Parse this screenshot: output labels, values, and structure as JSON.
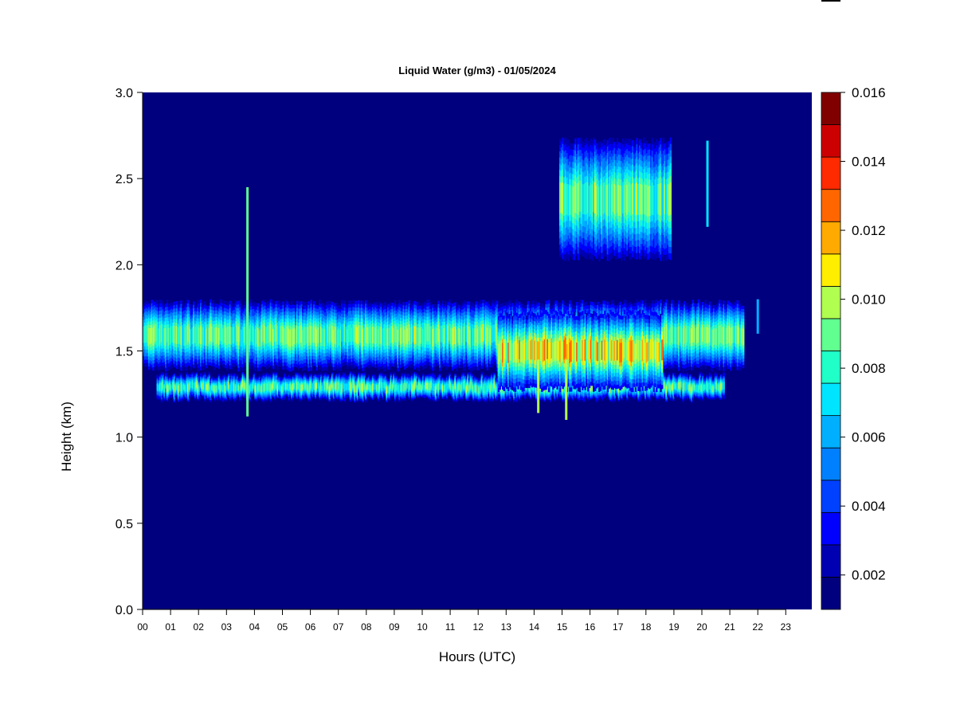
{
  "chart_data": {
    "type": "heatmap",
    "title": "Liquid Water (g/m3) - 01/05/2024",
    "xlabel": "Hours (UTC)",
    "ylabel": "Height (km)",
    "xlim": [
      0,
      24
    ],
    "ylim": [
      0,
      3.0
    ],
    "x_ticks": [
      {
        "value": 0,
        "label": "00"
      },
      {
        "value": 1,
        "label": "01"
      },
      {
        "value": 2,
        "label": "02"
      },
      {
        "value": 3,
        "label": "03"
      },
      {
        "value": 4,
        "label": "04"
      },
      {
        "value": 5,
        "label": "05"
      },
      {
        "value": 6,
        "label": "06"
      },
      {
        "value": 7,
        "label": "07"
      },
      {
        "value": 8,
        "label": "08"
      },
      {
        "value": 9,
        "label": "09"
      },
      {
        "value": 10,
        "label": "10"
      },
      {
        "value": 11,
        "label": "11"
      },
      {
        "value": 12,
        "label": "12"
      },
      {
        "value": 13,
        "label": "13"
      },
      {
        "value": 14,
        "label": "14"
      },
      {
        "value": 15,
        "label": "15"
      },
      {
        "value": 16,
        "label": "16"
      },
      {
        "value": 17,
        "label": "17"
      },
      {
        "value": 18,
        "label": "18"
      },
      {
        "value": 19,
        "label": "19"
      },
      {
        "value": 20,
        "label": "20"
      },
      {
        "value": 21,
        "label": "21"
      },
      {
        "value": 22,
        "label": "22"
      },
      {
        "value": 23,
        "label": "23"
      }
    ],
    "y_ticks": [
      {
        "value": 0.0,
        "label": "0.0"
      },
      {
        "value": 0.5,
        "label": "0.5"
      },
      {
        "value": 1.0,
        "label": "1.0"
      },
      {
        "value": 1.5,
        "label": "1.5"
      },
      {
        "value": 2.0,
        "label": "2.0"
      },
      {
        "value": 2.5,
        "label": "2.5"
      },
      {
        "value": 3.0,
        "label": "3.0"
      }
    ],
    "colorbar": {
      "min": 0.001,
      "max": 0.016,
      "levels": 15,
      "colors": [
        "#00007f",
        "#0000b2",
        "#0000e5",
        "#0019ff",
        "#0059ff",
        "#0099ff",
        "#00d8ff",
        "#26ffd1",
        "#66ff91",
        "#a5ff51",
        "#e5ff12",
        "#ffcc00",
        "#ff8c00",
        "#ff4c00",
        "#e50c00",
        "#b20000",
        "#7f0000"
      ],
      "ticks": [
        {
          "value": 0.002,
          "label": "0.002"
        },
        {
          "value": 0.004,
          "label": "0.004"
        },
        {
          "value": 0.006,
          "label": "0.006"
        },
        {
          "value": 0.008,
          "label": "0.008"
        },
        {
          "value": 0.01,
          "label": "0.010"
        },
        {
          "value": 0.012,
          "label": "0.012"
        },
        {
          "value": 0.014,
          "label": "0.014"
        },
        {
          "value": 0.016,
          "label": "0.016"
        }
      ],
      "band_colors": [
        "#00007f",
        "#0000b2",
        "#0000ff",
        "#0040ff",
        "#0080ff",
        "#00b0ff",
        "#00e5ff",
        "#20ffc8",
        "#60ff90",
        "#b0ff50",
        "#ffee00",
        "#ffaa00",
        "#ff6600",
        "#ff2a00",
        "#cc0000",
        "#800000"
      ]
    },
    "background_value": 0.001,
    "cloud_layers": [
      {
        "name": "",
        "t_start": 0.0,
        "t_end": 21.5,
        "z_base": 1.4,
        "z_top": 1.78,
        "core_value": 0.0105
      },
      {
        "name": "",
        "t_start": 0.5,
        "t_end": 20.8,
        "z_base": 1.22,
        "z_top": 1.36,
        "core_value": 0.01
      },
      {
        "name": "",
        "t_start": 12.7,
        "t_end": 18.6,
        "z_base": 1.28,
        "z_top": 1.72,
        "core_value": 0.013
      },
      {
        "name": "",
        "t_start": 14.9,
        "t_end": 18.9,
        "z_base": 2.04,
        "z_top": 2.72,
        "core_value": 0.0105
      }
    ]
  }
}
